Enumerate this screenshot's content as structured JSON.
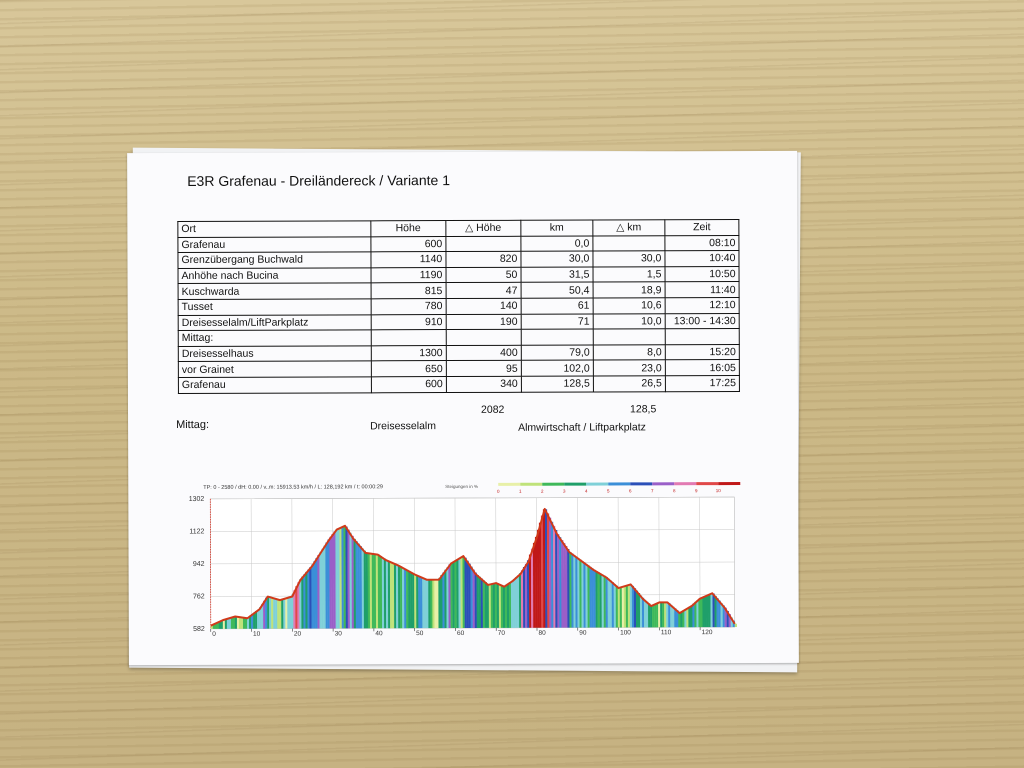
{
  "document": {
    "title": "E3R  Grafenau - Dreiländereck /  Variante 1",
    "table": {
      "headers": [
        "Ort",
        "Höhe",
        "△ Höhe",
        "km",
        "△ km",
        "Zeit"
      ],
      "rows": [
        {
          "ort": "Grafenau",
          "hoehe": "600",
          "delta_hoehe": "",
          "km": "0,0",
          "delta_km": "",
          "zeit": "08:10"
        },
        {
          "ort": "Grenzübergang Buchwald",
          "hoehe": "1140",
          "delta_hoehe": "820",
          "km": "30,0",
          "delta_km": "30,0",
          "zeit": "10:40"
        },
        {
          "ort": "Anhöhe nach Bucina",
          "hoehe": "1190",
          "delta_hoehe": "50",
          "km": "31,5",
          "delta_km": "1,5",
          "zeit": "10:50"
        },
        {
          "ort": "Kuschwarda",
          "hoehe": "815",
          "delta_hoehe": "47",
          "km": "50,4",
          "delta_km": "18,9",
          "zeit": "11:40"
        },
        {
          "ort": "Tusset",
          "hoehe": "780",
          "delta_hoehe": "140",
          "km": "61",
          "delta_km": "10,6",
          "zeit": "12:10"
        },
        {
          "ort": "Dreisesselalm/LiftParkplatz",
          "hoehe": "910",
          "delta_hoehe": "190",
          "km": "71",
          "delta_km": "10,0",
          "zeit": "13:00 - 14:30"
        },
        {
          "ort": "Mittag:",
          "hoehe": "",
          "delta_hoehe": "",
          "km": "",
          "delta_km": "",
          "zeit": ""
        },
        {
          "ort": "Dreisesselhaus",
          "hoehe": "1300",
          "delta_hoehe": "400",
          "km": "79,0",
          "delta_km": "8,0",
          "zeit": "15:20"
        },
        {
          "ort": "vor Grainet",
          "hoehe": "650",
          "delta_hoehe": "95",
          "km": "102,0",
          "delta_km": "23,0",
          "zeit": "16:05"
        },
        {
          "ort": "Grafenau",
          "hoehe": "600",
          "delta_hoehe": "340",
          "km": "128,5",
          "delta_km": "26,5",
          "zeit": "17:25"
        }
      ],
      "totals": {
        "delta_hoehe": "2082",
        "delta_km": "128,5"
      }
    },
    "mittag": {
      "label": "Mittag:",
      "option_a": "Dreisesselalm",
      "option_b": "Almwirtschaft / Liftparkplatz"
    },
    "profile": {
      "header_text": "TP: 0 - 2580 / dH: 0.00  / v..m: 15913.53 km/h / L: 128,192 km / t: 00:00:29",
      "legend_title": "Steigungen in %",
      "legend_ticks": [
        "0",
        "1",
        "2",
        "3",
        "4",
        "5",
        "6",
        "7",
        "8",
        "9",
        "10"
      ],
      "legend_colors": [
        "#e8f0a8",
        "#bfe27a",
        "#3fb95a",
        "#1f9f6a",
        "#7fd0d8",
        "#3b8fd8",
        "#2b4fb8",
        "#9a5fc8",
        "#e27ab2",
        "#e04848",
        "#c01818"
      ],
      "y_ticks": [
        "1302",
        "1122",
        "942",
        "762",
        "582"
      ],
      "x_ticks": [
        "0",
        "10",
        "20",
        "30",
        "40",
        "50",
        "60",
        "70",
        "80",
        "90",
        "100",
        "110",
        "120"
      ],
      "line_color": "#d03a1a"
    }
  },
  "chart_data": {
    "type": "area",
    "title": "",
    "xlabel": "",
    "ylabel": "",
    "xlim": [
      0,
      128.5
    ],
    "ylim": [
      582,
      1302
    ],
    "x": [
      0,
      3,
      6,
      9,
      12,
      14,
      17,
      20,
      22,
      25,
      27,
      29,
      31,
      33,
      35,
      38,
      41,
      43,
      46,
      50,
      53,
      56,
      59,
      62,
      65,
      68,
      70,
      72,
      74,
      76,
      78,
      80,
      82,
      85,
      88,
      91,
      94,
      97,
      100,
      103,
      106,
      108,
      110,
      112,
      115,
      118,
      120,
      123,
      126,
      128.5
    ],
    "series": [
      {
        "values": [
          600,
          630,
          650,
          640,
          690,
          760,
          740,
          760,
          850,
          930,
          1000,
          1070,
          1130,
          1150,
          1080,
          1000,
          990,
          960,
          930,
          880,
          850,
          850,
          940,
          980,
          880,
          820,
          830,
          810,
          840,
          880,
          950,
          1080,
          1240,
          1100,
          1000,
          950,
          900,
          860,
          800,
          820,
          740,
          700,
          720,
          720,
          660,
          700,
          740,
          770,
          690,
          600
        ]
      }
    ]
  }
}
